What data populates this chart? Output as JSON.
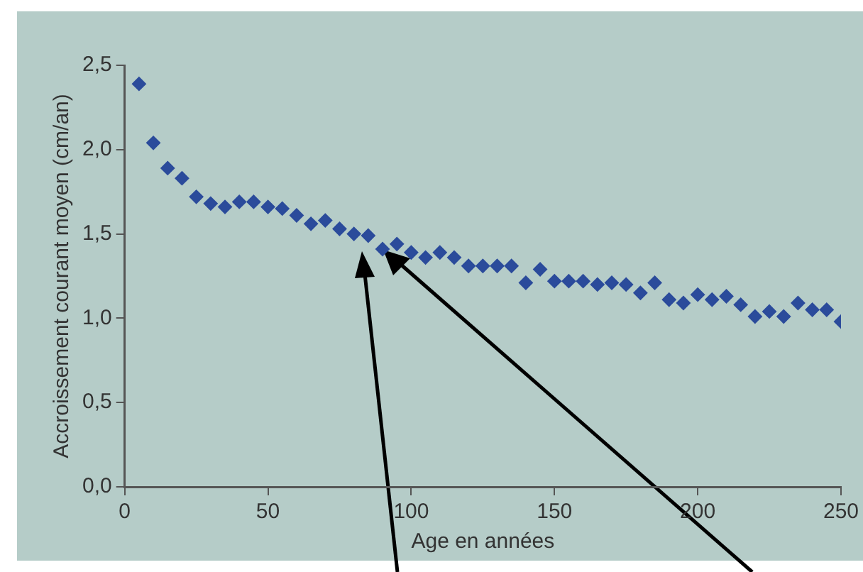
{
  "chart_data": {
    "type": "scatter",
    "xlabel": "Age en années",
    "ylabel": "Accroissement courant moyen (cm/an)",
    "x": [
      5,
      10,
      15,
      20,
      25,
      30,
      35,
      40,
      45,
      50,
      55,
      60,
      65,
      70,
      75,
      80,
      85,
      90,
      95,
      100,
      105,
      110,
      115,
      120,
      125,
      130,
      135,
      140,
      145,
      150,
      155,
      160,
      165,
      170,
      175,
      180,
      185,
      190,
      195,
      200,
      205,
      210,
      215,
      220,
      225,
      230,
      235,
      240,
      245,
      250
    ],
    "series": [
      {
        "color": "#2b4b9b",
        "values": [
          2.39,
          2.04,
          1.89,
          1.83,
          1.72,
          1.68,
          1.66,
          1.69,
          1.69,
          1.66,
          1.65,
          1.61,
          1.56,
          1.58,
          1.53,
          1.5,
          1.49,
          1.41,
          1.44,
          1.39,
          1.36,
          1.39,
          1.36,
          1.31,
          1.31,
          1.31,
          1.31,
          1.21,
          1.29,
          1.22,
          1.22,
          1.22,
          1.2,
          1.21,
          1.2,
          1.15,
          1.21,
          1.11,
          1.09,
          1.14,
          1.11,
          1.13,
          1.08,
          1.01,
          1.04,
          1.01,
          1.09,
          1.05,
          1.05,
          0.98
        ]
      }
    ],
    "xlim": [
      0,
      250
    ],
    "xticks": [
      0,
      50,
      100,
      150,
      200,
      250
    ],
    "ylim": [
      0,
      2.5
    ],
    "yticks": [
      {
        "value": 0,
        "label": "0,0"
      },
      {
        "value": 0.5,
        "label": "0,5"
      },
      {
        "value": 1,
        "label": "1,0"
      },
      {
        "value": 1.5,
        "label": "1,5"
      },
      {
        "value": 2,
        "label": "2,0"
      },
      {
        "value": 2.5,
        "label": "2,5"
      }
    ],
    "marker": "diamond",
    "grid": false,
    "legend": false
  }
}
